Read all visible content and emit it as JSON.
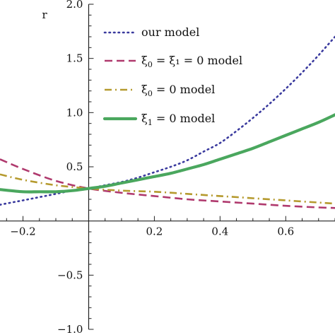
{
  "chart_data": {
    "type": "line",
    "ylabel": "r",
    "xlim": [
      -0.27,
      0.75
    ],
    "ylim": [
      -1.0,
      2.0
    ],
    "xticks": [
      {
        "value": -0.2,
        "label": "−0.2"
      },
      {
        "value": 0.2,
        "label": "0.2"
      },
      {
        "value": 0.4,
        "label": "0.4"
      },
      {
        "value": 0.6,
        "label": "0.6"
      }
    ],
    "yticks": [
      {
        "value": -1.0,
        "label": "−1.0"
      },
      {
        "value": -0.5,
        "label": "−0.5"
      },
      {
        "value": 0.5,
        "label": "0.5"
      },
      {
        "value": 1.0,
        "label": "1.0"
      },
      {
        "value": 1.5,
        "label": "1.5"
      },
      {
        "value": 2.0,
        "label": "2.0"
      }
    ],
    "legend_position": "top-center",
    "series": [
      {
        "name": "our model",
        "legend_main": "our model",
        "legend_sub": "",
        "legend_tail": "",
        "style": "dotted",
        "color": "#3a3a9e",
        "x": [
          -0.27,
          -0.2,
          -0.15,
          -0.1,
          -0.05,
          0.0,
          0.05,
          0.1,
          0.15,
          0.2,
          0.25,
          0.3,
          0.35,
          0.4,
          0.45,
          0.5,
          0.55,
          0.6,
          0.65,
          0.7,
          0.75
        ],
        "y": [
          0.15,
          0.19,
          0.22,
          0.25,
          0.28,
          0.3,
          0.33,
          0.36,
          0.4,
          0.45,
          0.5,
          0.56,
          0.64,
          0.72,
          0.83,
          0.95,
          1.08,
          1.22,
          1.37,
          1.53,
          1.7
        ]
      },
      {
        "name": "ξ0 = ξ1 = 0 model",
        "legend_main": "ξ",
        "legend_sub": "0",
        "legend_tail": " = ξ₁ = 0 model",
        "style": "dashed",
        "color": "#b03a6e",
        "x": [
          -0.27,
          -0.2,
          -0.1,
          0.0,
          0.1,
          0.2,
          0.3,
          0.4,
          0.5,
          0.6,
          0.7,
          0.75
        ],
        "y": [
          0.57,
          0.48,
          0.37,
          0.3,
          0.26,
          0.23,
          0.2,
          0.18,
          0.16,
          0.14,
          0.125,
          0.12
        ]
      },
      {
        "name": "ξ0 = 0 model",
        "legend_main": "ξ",
        "legend_sub": "0",
        "legend_tail": " = 0 model",
        "style": "dashdot",
        "color": "#b59a2e",
        "x": [
          -0.27,
          -0.2,
          -0.1,
          0.0,
          0.1,
          0.2,
          0.3,
          0.4,
          0.5,
          0.6,
          0.7,
          0.75
        ],
        "y": [
          0.43,
          0.38,
          0.33,
          0.3,
          0.28,
          0.27,
          0.25,
          0.23,
          0.21,
          0.19,
          0.17,
          0.16
        ]
      },
      {
        "name": "ξ1 = 0 model",
        "legend_main": "ξ",
        "legend_sub": "1",
        "legend_tail": " = 0 model",
        "style": "solid",
        "color": "#4aa75e",
        "x": [
          -0.27,
          -0.2,
          -0.15,
          -0.1,
          -0.05,
          0.0,
          0.05,
          0.1,
          0.15,
          0.2,
          0.25,
          0.3,
          0.35,
          0.4,
          0.45,
          0.5,
          0.55,
          0.6,
          0.65,
          0.7,
          0.75
        ],
        "y": [
          0.29,
          0.27,
          0.27,
          0.27,
          0.28,
          0.3,
          0.32,
          0.35,
          0.38,
          0.41,
          0.44,
          0.48,
          0.52,
          0.57,
          0.62,
          0.67,
          0.73,
          0.79,
          0.85,
          0.91,
          0.98
        ]
      }
    ]
  }
}
